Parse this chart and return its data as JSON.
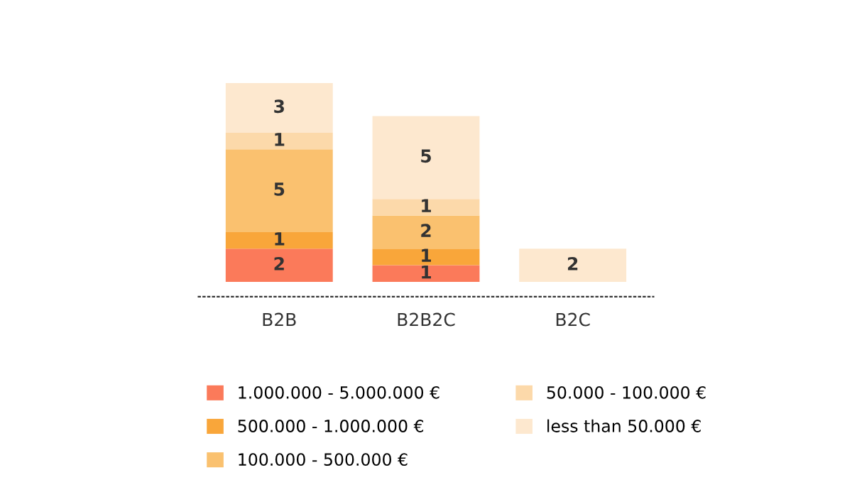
{
  "chart_data": {
    "type": "bar",
    "stacked": true,
    "data_labels": true,
    "categories": [
      "B2B",
      "B2B2C",
      "B2C"
    ],
    "legend": "bottom",
    "grid": false,
    "series": [
      {
        "name": "1.000.000 - 5.000.000 €",
        "color": "#fb7a5a",
        "values": [
          2,
          1,
          null
        ]
      },
      {
        "name": "500.000 - 1.000.000 €",
        "color": "#f9a63a",
        "values": [
          1,
          1,
          null
        ]
      },
      {
        "name": "100.000 - 500.000 €",
        "color": "#fac16f",
        "values": [
          5,
          2,
          null
        ]
      },
      {
        "name": "50.000 - 100.000 €",
        "color": "#fcd9aa",
        "values": [
          1,
          1,
          null
        ]
      },
      {
        "name": "less than 50.000 €",
        "color": "#fde8cf",
        "values": [
          3,
          5,
          2
        ]
      }
    ]
  }
}
